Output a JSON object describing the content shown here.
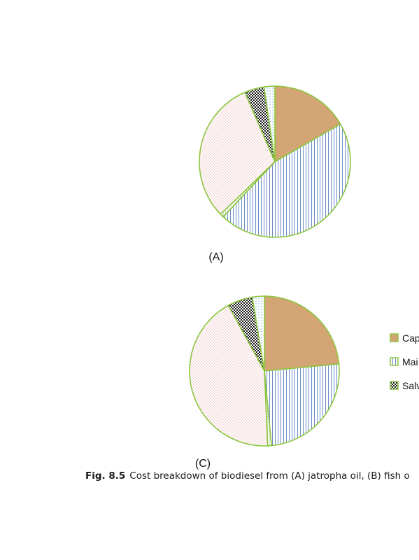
{
  "chart_data": [
    {
      "type": "pie",
      "panel_label": "(A)",
      "categories": [
        "Cap",
        "Mai",
        "",
        "",
        "Salv",
        ""
      ],
      "values": [
        16.7,
        45.3,
        0.8,
        30.7,
        4.2,
        2.3
      ]
    },
    {
      "type": "pie",
      "panel_label": "(C)",
      "categories": [
        "Cap",
        "Mai",
        "",
        "",
        "Salv",
        ""
      ],
      "values": [
        23.5,
        25.0,
        0.8,
        42.7,
        5.4,
        2.6
      ]
    }
  ],
  "legend": {
    "entries": [
      "Cap",
      "Mai",
      "Salv"
    ]
  },
  "caption": {
    "label": "Fig. 8.5",
    "text": "Cost breakdown of biodiesel from (A) jatropha oil, (B) fish o"
  },
  "colors": {
    "outline": "#8cc63f",
    "capital": "#d4a574",
    "maintenance_lines": "#6b8cc7",
    "dots_pink": "#e8a0a0",
    "checker": "#222222",
    "dots_blue": "#7fb3d8"
  }
}
